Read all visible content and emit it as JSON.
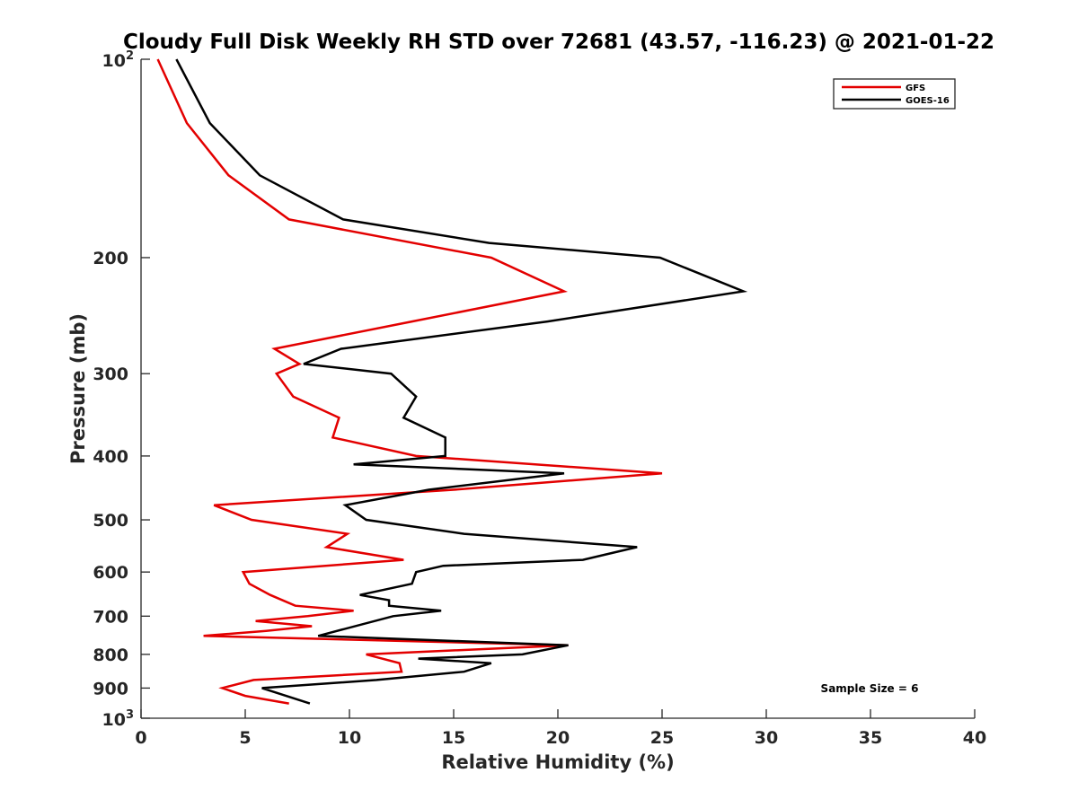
{
  "chart_data": {
    "type": "line",
    "title": "Cloudy Full Disk Weekly RH STD over 72681 (43.57, -116.23) @ 2021-01-22",
    "xlabel": "Relative Humidity (%)",
    "ylabel": "Pressure (mb)",
    "xlim": [
      0,
      40
    ],
    "ylim": [
      100,
      1000
    ],
    "y_scale": "log",
    "y_reversed": true,
    "grid": false,
    "legend_position": "top-right",
    "x_ticks": [
      0,
      5,
      10,
      15,
      20,
      25,
      30,
      35,
      40
    ],
    "y_ticks": [
      {
        "value": 100,
        "base": "10",
        "exp": "2"
      },
      {
        "value": 200,
        "text": "200"
      },
      {
        "value": 300,
        "text": "300"
      },
      {
        "value": 400,
        "text": "400"
      },
      {
        "value": 500,
        "text": "500"
      },
      {
        "value": 600,
        "text": "600"
      },
      {
        "value": 700,
        "text": "700"
      },
      {
        "value": 800,
        "text": "800"
      },
      {
        "value": 900,
        "text": "900"
      },
      {
        "value": 1000,
        "base": "10",
        "exp": "3"
      }
    ],
    "annotation": "Sample Size = 6",
    "series": [
      {
        "name": "GFS",
        "color": "#e30000",
        "points": [
          [
            0.8,
            100
          ],
          [
            2.2,
            125
          ],
          [
            4.2,
            150
          ],
          [
            7.1,
            175
          ],
          [
            16.8,
            200
          ],
          [
            20.3,
            225
          ],
          [
            13.0,
            250
          ],
          [
            6.4,
            275
          ],
          [
            7.6,
            290
          ],
          [
            6.5,
            300
          ],
          [
            7.3,
            325
          ],
          [
            9.5,
            350
          ],
          [
            9.2,
            375
          ],
          [
            13.2,
            400
          ],
          [
            25.0,
            425
          ],
          [
            15.0,
            450
          ],
          [
            3.5,
            475
          ],
          [
            5.3,
            500
          ],
          [
            9.9,
            525
          ],
          [
            8.9,
            550
          ],
          [
            12.6,
            575
          ],
          [
            4.9,
            600
          ],
          [
            5.2,
            625
          ],
          [
            6.2,
            650
          ],
          [
            7.4,
            675
          ],
          [
            10.2,
            687
          ],
          [
            8.0,
            700
          ],
          [
            5.5,
            712
          ],
          [
            8.2,
            725
          ],
          [
            6.0,
            737
          ],
          [
            3.0,
            750
          ],
          [
            20.5,
            775
          ],
          [
            10.8,
            800
          ],
          [
            12.4,
            825
          ],
          [
            12.5,
            850
          ],
          [
            5.4,
            875
          ],
          [
            3.9,
            900
          ],
          [
            5.0,
            925
          ],
          [
            7.1,
            950
          ]
        ]
      },
      {
        "name": "GOES-16",
        "color": "#000000",
        "points": [
          [
            1.7,
            100
          ],
          [
            3.3,
            125
          ],
          [
            5.7,
            150
          ],
          [
            9.7,
            175
          ],
          [
            16.7,
            190
          ],
          [
            24.9,
            200
          ],
          [
            28.9,
            225
          ],
          [
            19.5,
            250
          ],
          [
            9.6,
            275
          ],
          [
            7.8,
            290
          ],
          [
            12.0,
            300
          ],
          [
            13.2,
            325
          ],
          [
            12.6,
            350
          ],
          [
            14.6,
            375
          ],
          [
            14.6,
            400
          ],
          [
            10.2,
            412
          ],
          [
            20.3,
            425
          ],
          [
            13.8,
            450
          ],
          [
            9.8,
            475
          ],
          [
            10.8,
            500
          ],
          [
            15.5,
            525
          ],
          [
            23.8,
            550
          ],
          [
            21.2,
            575
          ],
          [
            14.5,
            587
          ],
          [
            13.2,
            600
          ],
          [
            13.0,
            625
          ],
          [
            10.5,
            650
          ],
          [
            11.9,
            662
          ],
          [
            11.9,
            675
          ],
          [
            14.4,
            687
          ],
          [
            12.1,
            700
          ],
          [
            8.5,
            750
          ],
          [
            20.5,
            775
          ],
          [
            18.3,
            800
          ],
          [
            13.3,
            812
          ],
          [
            16.8,
            825
          ],
          [
            15.5,
            850
          ],
          [
            11.3,
            875
          ],
          [
            5.8,
            900
          ],
          [
            8.1,
            950
          ]
        ]
      }
    ]
  }
}
